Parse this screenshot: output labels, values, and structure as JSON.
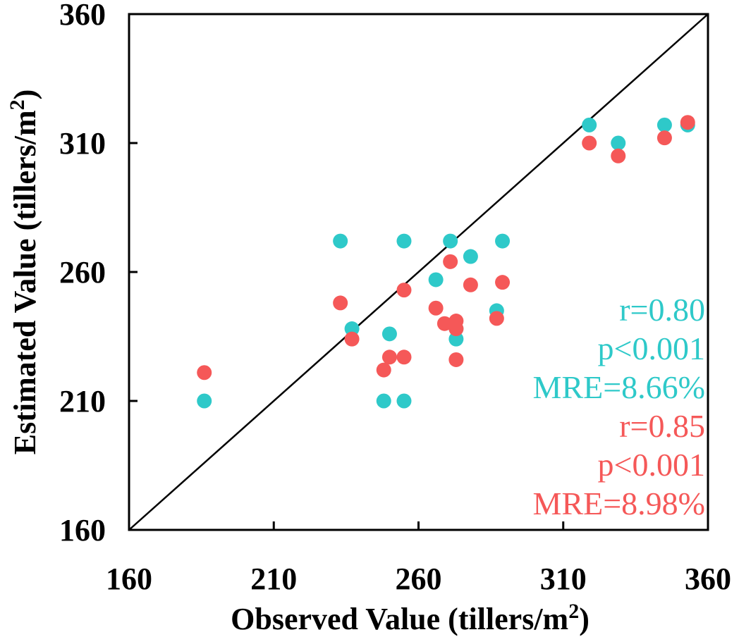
{
  "chart_data": {
    "type": "scatter",
    "xlabel": "Observed Value (tillers/m²)",
    "ylabel": "Estimated Value (tillers/m²)",
    "xlabel_parts": {
      "pre": "Observed Value (tillers/m",
      "sup": "2",
      "post": ")"
    },
    "ylabel_parts": {
      "pre": "Estimated Value (tillers/m",
      "sup": "2",
      "post": ")"
    },
    "xlim": [
      160,
      360
    ],
    "ylim": [
      160,
      360
    ],
    "xticks": [
      160,
      210,
      260,
      310,
      360
    ],
    "yticks": [
      160,
      210,
      260,
      310,
      360
    ],
    "reference_line": "1:1",
    "series": [
      {
        "name": "cyan",
        "color": "#2ec9c9",
        "points": [
          [
            186,
            210
          ],
          [
            233,
            272
          ],
          [
            237,
            238
          ],
          [
            248,
            210
          ],
          [
            250,
            236
          ],
          [
            255,
            272
          ],
          [
            255,
            210
          ],
          [
            266,
            257
          ],
          [
            271,
            272
          ],
          [
            273,
            234
          ],
          [
            273,
            238
          ],
          [
            278,
            266
          ],
          [
            287,
            245
          ],
          [
            289,
            272
          ],
          [
            319,
            317
          ],
          [
            329,
            310
          ],
          [
            345,
            317
          ],
          [
            353,
            317
          ]
        ],
        "stats": [
          "r=0.80",
          "p<0.001",
          "MRE=8.66%"
        ]
      },
      {
        "name": "red",
        "color": "#f55858",
        "points": [
          [
            186,
            221
          ],
          [
            233,
            248
          ],
          [
            237,
            234
          ],
          [
            248,
            222
          ],
          [
            250,
            227
          ],
          [
            255,
            227
          ],
          [
            255,
            253
          ],
          [
            266,
            246
          ],
          [
            269,
            240
          ],
          [
            271,
            264
          ],
          [
            273,
            226
          ],
          [
            273,
            238
          ],
          [
            273,
            241
          ],
          [
            278,
            255
          ],
          [
            287,
            242
          ],
          [
            289,
            256
          ],
          [
            319,
            310
          ],
          [
            329,
            305
          ],
          [
            345,
            312
          ],
          [
            353,
            318
          ]
        ],
        "stats": [
          "r=0.85",
          "p<0.001",
          "MRE=8.98%"
        ]
      }
    ]
  }
}
